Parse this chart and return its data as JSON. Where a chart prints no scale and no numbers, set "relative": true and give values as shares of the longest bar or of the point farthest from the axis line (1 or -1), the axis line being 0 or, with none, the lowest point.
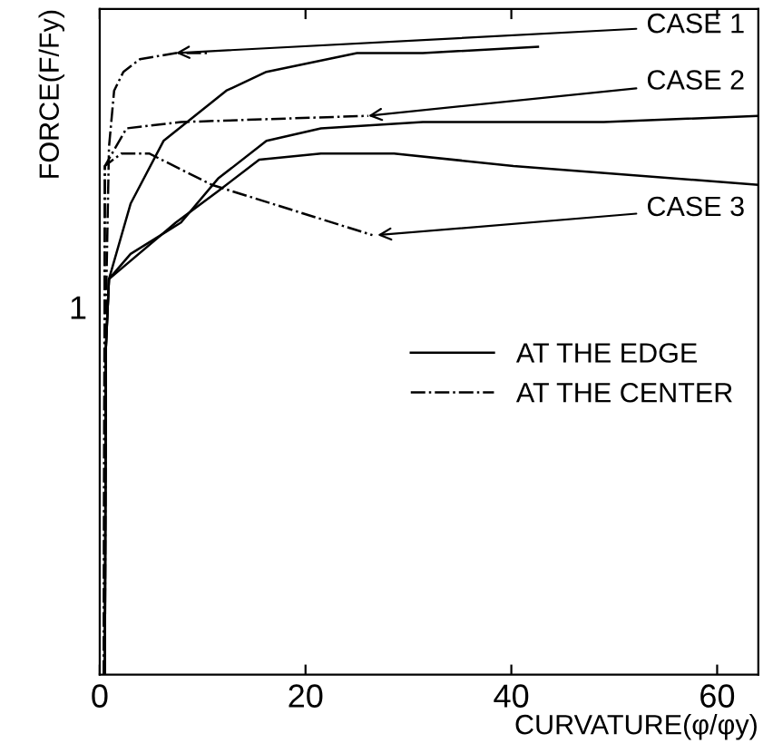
{
  "chart_data": {
    "type": "line",
    "xlabel": "CURVATURE(φ/φy)",
    "ylabel": "FORCE(F/Fy)",
    "relative": true,
    "xlim": [
      0,
      64
    ],
    "xticks": [
      0,
      20,
      40,
      60
    ],
    "grid": false,
    "legend": "center right",
    "marker": "none",
    "series": [
      {
        "name": "AT THE EDGE",
        "color": "#000000",
        "line_style": "solid",
        "x": [
          0.5,
          0.6,
          0.9,
          3.0,
          6.2,
          12.3,
          16.2,
          25,
          31.4,
          42.7
        ],
        "values": [
          0,
          0.52,
          0.63,
          0.75,
          0.85,
          0.93,
          0.96,
          0.99,
          0.99,
          1
        ]
      },
      {
        "name": "AT THE CENTER",
        "color": "#000000",
        "line_style": "dashdot",
        "x": [
          0.5,
          0.6,
          0.9,
          1.4,
          2.3,
          3.9,
          7.4,
          10.6
        ],
        "values": [
          0,
          0.58,
          0.84,
          0.93,
          0.96,
          0.98,
          0.99,
          0.99
        ]
      },
      {
        "color": "#000000",
        "line_style": "solid",
        "x": [
          0.5,
          0.6,
          0.9,
          3.0,
          7.9,
          11.5,
          16.2,
          21.5,
          31.4,
          49,
          64
        ],
        "values": [
          0,
          0.52,
          0.63,
          0.67,
          0.72,
          0.79,
          0.85,
          0.87,
          0.88,
          0.88,
          0.89
        ]
      },
      {
        "color": "#000000",
        "line_style": "dashdot",
        "x": [
          0.4,
          0.5,
          2.6,
          7.9,
          26.1
        ],
        "values": [
          0,
          0.81,
          0.87,
          0.88,
          0.89
        ]
      },
      {
        "color": "#000000",
        "line_style": "solid",
        "x": [
          0.5,
          0.6,
          0.9,
          7.4,
          11.5,
          15.5,
          21.5,
          28.6,
          40.2,
          64
        ],
        "values": [
          0,
          0.52,
          0.63,
          0.72,
          0.77,
          0.82,
          0.83,
          0.83,
          0.81,
          0.78
        ]
      },
      {
        "color": "#000000",
        "line_style": "dashdot",
        "x": [
          0.4,
          0.5,
          2.1,
          4.8,
          10.9,
          26.5
        ],
        "values": [
          0,
          0.81,
          0.83,
          0.83,
          0.78,
          0.7
        ]
      }
    ],
    "annotations": [
      {
        "text": "CASE 1",
        "x": 7.4,
        "y": 0.99
      },
      {
        "text": "CASE 2",
        "x": 26.1,
        "y": 0.89
      },
      {
        "text": "CASE 3",
        "x": 27,
        "y": 0.7
      },
      {
        "text": "1",
        "x": 0,
        "y": 0.58
      }
    ]
  }
}
